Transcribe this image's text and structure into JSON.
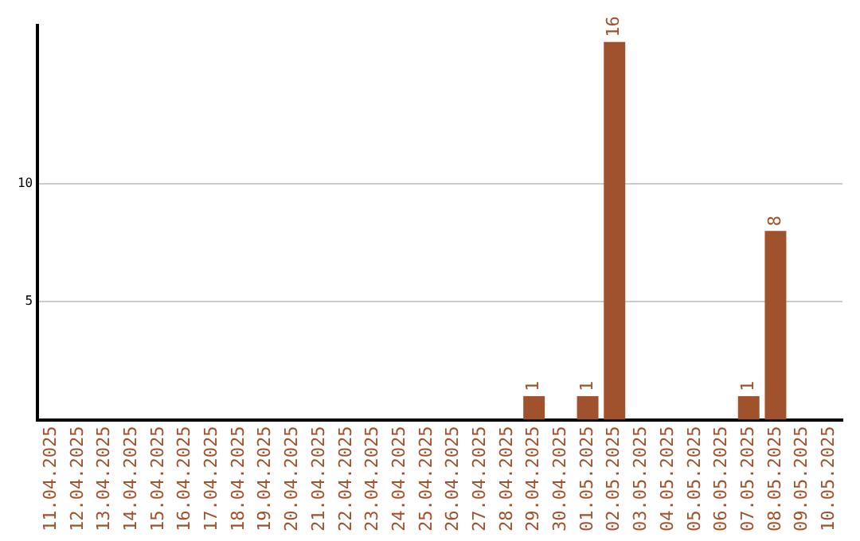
{
  "chart_data": {
    "type": "bar",
    "categories": [
      "11.04.2025",
      "12.04.2025",
      "13.04.2025",
      "14.04.2025",
      "15.04.2025",
      "16.04.2025",
      "17.04.2025",
      "18.04.2025",
      "19.04.2025",
      "20.04.2025",
      "21.04.2025",
      "22.04.2025",
      "23.04.2025",
      "24.04.2025",
      "25.04.2025",
      "26.04.2025",
      "27.04.2025",
      "28.04.2025",
      "29.04.2025",
      "30.04.2025",
      "01.05.2025",
      "02.05.2025",
      "03.05.2025",
      "04.05.2025",
      "05.05.2025",
      "06.05.2025",
      "07.05.2025",
      "08.05.2025",
      "09.05.2025",
      "10.05.2025"
    ],
    "values": [
      0,
      0,
      0,
      0,
      0,
      0,
      0,
      0,
      0,
      0,
      0,
      0,
      0,
      0,
      0,
      0,
      0,
      0,
      1,
      0,
      1,
      16,
      0,
      0,
      0,
      0,
      1,
      8,
      0,
      0
    ],
    "value_labels": [
      null,
      null,
      null,
      null,
      null,
      null,
      null,
      null,
      null,
      null,
      null,
      null,
      null,
      null,
      null,
      null,
      null,
      null,
      "1",
      null,
      "1",
      "16",
      null,
      null,
      null,
      null,
      "1",
      "8",
      null,
      null
    ],
    "color": "#a0522d",
    "ylim": [
      0,
      16.7
    ],
    "yticks": [
      5,
      10
    ],
    "grid": "y",
    "legend": false
  }
}
